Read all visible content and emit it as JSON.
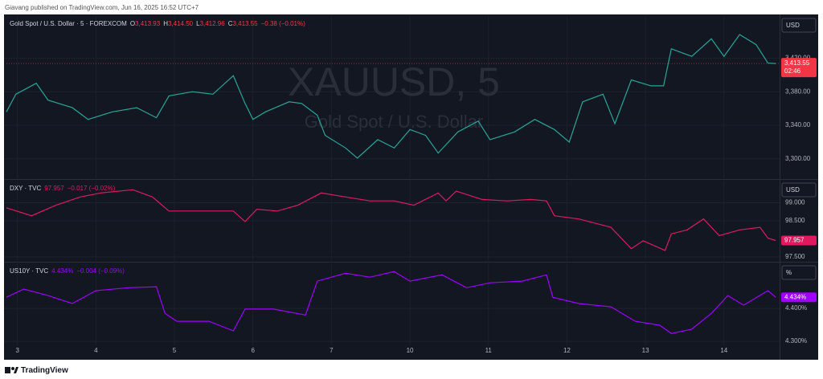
{
  "header": "Giavang published on TradingView.com, Jun 16, 2025 16:52 UTC+7",
  "footer": "TradingView",
  "chart_data": [
    {
      "type": "line",
      "name": "Gold Spot / U.S. Dollar · 5 · FOREXCOM",
      "watermark": "XAUUSD, 5",
      "watermark_subtitle": "Gold Spot / U.S. Dollar",
      "quote": [
        {
          "key": "O",
          "value": "3,413.93"
        },
        {
          "key": "H",
          "value": "3,414.50"
        },
        {
          "key": "L",
          "value": "3,412.96"
        },
        {
          "key": "C",
          "value": "3,413.55"
        }
      ],
      "change": "−0.38 (−0.01%)",
      "currency": "USD",
      "last_label": "3,413.55",
      "countdown": "02:46",
      "color": "#26a69a",
      "label_color": "#f23645",
      "x": [
        -0.14,
        -0.02,
        0.24,
        0.39,
        0.7,
        0.9,
        1.21,
        1.52,
        1.77,
        1.93,
        2.23,
        2.49,
        2.75,
        2.9,
        3.0,
        3.16,
        3.46,
        3.62,
        3.82,
        3.92,
        4.18,
        4.33,
        4.59,
        4.8,
        5.0,
        5.2,
        5.36,
        5.61,
        5.87,
        6.02,
        6.33,
        6.59,
        6.84,
        7.03,
        7.2,
        7.46,
        7.61,
        7.82,
        8.07,
        8.23,
        8.33,
        8.59,
        8.84,
        9.0,
        9.2,
        9.41,
        9.56,
        9.66
      ],
      "values": [
        3356,
        3377,
        3390,
        3370,
        3361,
        3347,
        3356,
        3361,
        3349,
        3375,
        3380,
        3377,
        3399,
        3366,
        3347,
        3356,
        3368,
        3366,
        3352,
        3328,
        3313,
        3301,
        3323,
        3313,
        3335,
        3328,
        3307,
        3332,
        3345,
        3323,
        3332,
        3347,
        3335,
        3320,
        3368,
        3377,
        3342,
        3394,
        3387,
        3387,
        3431,
        3422,
        3443,
        3422,
        3448,
        3436,
        3414,
        3413.55
      ],
      "xlim": [
        -0.14,
        9.76
      ],
      "ylim": [
        3277,
        3470
      ],
      "yticks": [
        {
          "value": 3300,
          "label": "3,300.00"
        },
        {
          "value": 3340,
          "label": "3,340.00"
        },
        {
          "value": 3380,
          "label": "3,380.00"
        },
        {
          "value": 3420,
          "label": "3,420.00"
        }
      ]
    },
    {
      "type": "line",
      "name": "DXY · TVC",
      "last": "97.957",
      "change": "−0.017 (−0.02%)",
      "currency": "USD",
      "last_label": "97.957",
      "color": "#e0195f",
      "label_color": "#e0195f",
      "x": [
        -0.14,
        0.18,
        0.49,
        0.8,
        1.06,
        1.47,
        1.72,
        1.93,
        2.34,
        2.75,
        2.9,
        3.05,
        3.31,
        3.57,
        3.87,
        4.18,
        4.49,
        4.8,
        5.05,
        5.36,
        5.46,
        5.59,
        5.92,
        6.23,
        6.54,
        6.74,
        6.84,
        7.15,
        7.56,
        7.82,
        7.97,
        8.25,
        8.33,
        8.53,
        8.74,
        8.94,
        9.2,
        9.46,
        9.56,
        9.66
      ],
      "values": [
        98.86,
        98.64,
        98.93,
        99.16,
        99.27,
        99.36,
        99.16,
        98.77,
        98.77,
        98.77,
        98.48,
        98.82,
        98.77,
        98.93,
        99.27,
        99.16,
        99.05,
        99.05,
        98.93,
        99.27,
        99.05,
        99.32,
        99.09,
        99.05,
        99.09,
        99.05,
        98.64,
        98.55,
        98.32,
        97.73,
        97.95,
        97.68,
        98.14,
        98.25,
        98.55,
        98.09,
        98.25,
        98.32,
        98.02,
        97.957
      ],
      "xlim": [
        -0.14,
        9.76
      ],
      "ylim": [
        97.39,
        99.61
      ],
      "yticks": [
        {
          "value": 97.5,
          "label": "97.500"
        },
        {
          "value": 98.5,
          "label": "98.500"
        },
        {
          "value": 99,
          "label": "99.000"
        }
      ]
    },
    {
      "type": "line",
      "name": "US10Y · TVC",
      "last": "4.434%",
      "change": "−0.004 (−0.09%)",
      "currency": "%",
      "last_label": "4.434%",
      "color": "#a000ff",
      "label_color": "#a000ff",
      "x": [
        -0.14,
        0.08,
        0.39,
        0.7,
        1.0,
        1.41,
        1.77,
        1.88,
        2.03,
        2.44,
        2.75,
        2.9,
        3.26,
        3.67,
        3.82,
        4.18,
        4.49,
        4.8,
        5.0,
        5.41,
        5.72,
        6.02,
        6.43,
        6.74,
        6.82,
        7.15,
        7.56,
        7.87,
        8.18,
        8.33,
        8.59,
        8.84,
        9.05,
        9.25,
        9.56,
        9.66
      ],
      "values": [
        4.434,
        4.459,
        4.439,
        4.415,
        4.454,
        4.463,
        4.466,
        4.385,
        4.361,
        4.361,
        4.332,
        4.398,
        4.398,
        4.38,
        4.483,
        4.507,
        4.495,
        4.512,
        4.483,
        4.502,
        4.463,
        4.478,
        4.483,
        4.502,
        4.434,
        4.415,
        4.405,
        4.361,
        4.349,
        4.324,
        4.337,
        4.385,
        4.439,
        4.41,
        4.454,
        4.434
      ],
      "xlim": [
        -0.14,
        9.76
      ],
      "ylim": [
        4.288,
        4.537
      ],
      "yticks": [
        {
          "value": 4.3,
          "label": "4.300%"
        },
        {
          "value": 4.4,
          "label": "4.400%"
        }
      ],
      "xticks": [
        {
          "value": 0,
          "label": "3"
        },
        {
          "value": 1,
          "label": "4"
        },
        {
          "value": 2,
          "label": "5"
        },
        {
          "value": 3,
          "label": "6"
        },
        {
          "value": 4,
          "label": "7"
        },
        {
          "value": 5,
          "label": "10"
        },
        {
          "value": 6,
          "label": "11"
        },
        {
          "value": 7,
          "label": "12"
        },
        {
          "value": 8,
          "label": "13"
        },
        {
          "value": 9,
          "label": "14"
        }
      ]
    }
  ]
}
